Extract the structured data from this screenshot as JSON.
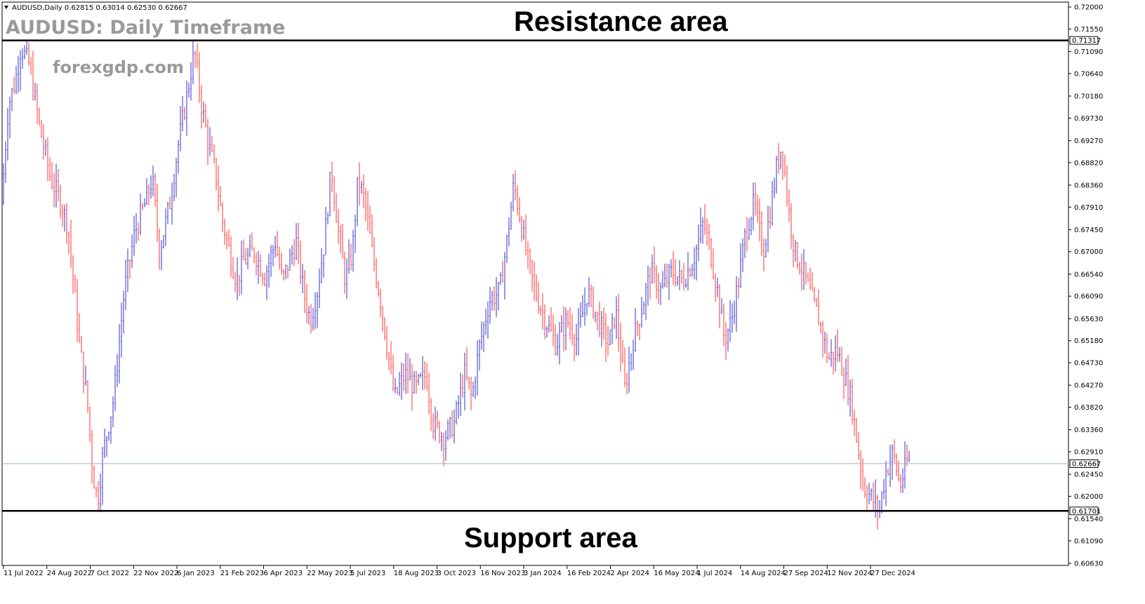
{
  "header": {
    "symbol_line": "AUDUSD,Daily  0.62815 0.63014 0.62530 0.62667",
    "title": "AUDUSD: Daily Timeframe",
    "site": "forexgdp.com"
  },
  "annotations": {
    "resistance": "Resistance area",
    "support": "Support area"
  },
  "colors": {
    "bull": "#3333cc",
    "bear": "#ff3333",
    "current_line": "#9fb0c4",
    "level_line": "#000000"
  },
  "chart_data": {
    "type": "line",
    "style": "OHLC bars",
    "ylim": [
      0.6063,
      0.72
    ],
    "y_ticks": [
      "0.72000",
      "0.71550",
      "0.71090",
      "0.70640",
      "0.70180",
      "0.69730",
      "0.69270",
      "0.68820",
      "0.68360",
      "0.67910",
      "0.67450",
      "0.67000",
      "0.66540",
      "0.66090",
      "0.65630",
      "0.65180",
      "0.64730",
      "0.64270",
      "0.63820",
      "0.63360",
      "0.62910",
      "0.62450",
      "0.62000",
      "0.61540",
      "0.61090",
      "0.60630"
    ],
    "x_ticks": [
      "11 Jul 2022",
      "24 Aug 2022",
      "7 Oct 2022",
      "22 Nov 2022",
      "6 Jan 2023",
      "21 Feb 2023",
      "6 Apr 2023",
      "22 May 2023",
      "5 Jul 2023",
      "18 Aug 2023",
      "3 Oct 2023",
      "16 Nov 2023",
      "3 Jan 2024",
      "16 Feb 2024",
      "2 Apr 2024",
      "16 May 2024",
      "1 Jul 2024",
      "14 Aug 2024",
      "27 Sep 2024",
      "12 Nov 2024",
      "27 Dec 2024"
    ],
    "resistance_level": "0.71317",
    "support_level": "0.61701",
    "current_price": "0.62667",
    "price_path": [
      [
        0,
        0.68
      ],
      [
        10,
        0.7
      ],
      [
        20,
        0.705
      ],
      [
        28,
        0.712
      ],
      [
        40,
        0.708
      ],
      [
        55,
        0.695
      ],
      [
        70,
        0.685
      ],
      [
        85,
        0.68
      ],
      [
        95,
        0.675
      ],
      [
        105,
        0.66
      ],
      [
        112,
        0.65
      ],
      [
        122,
        0.64
      ],
      [
        130,
        0.625
      ],
      [
        137,
        0.619
      ],
      [
        145,
        0.629
      ],
      [
        160,
        0.64
      ],
      [
        175,
        0.662
      ],
      [
        190,
        0.674
      ],
      [
        205,
        0.68
      ],
      [
        215,
        0.685
      ],
      [
        225,
        0.67
      ],
      [
        240,
        0.68
      ],
      [
        252,
        0.692
      ],
      [
        262,
        0.7
      ],
      [
        275,
        0.711
      ],
      [
        285,
        0.7
      ],
      [
        295,
        0.692
      ],
      [
        305,
        0.686
      ],
      [
        315,
        0.676
      ],
      [
        325,
        0.67
      ],
      [
        335,
        0.664
      ],
      [
        345,
        0.668
      ],
      [
        360,
        0.67
      ],
      [
        375,
        0.665
      ],
      [
        390,
        0.672
      ],
      [
        400,
        0.664
      ],
      [
        410,
        0.668
      ],
      [
        420,
        0.672
      ],
      [
        430,
        0.662
      ],
      [
        440,
        0.656
      ],
      [
        450,
        0.662
      ],
      [
        460,
        0.672
      ],
      [
        470,
        0.687
      ],
      [
        480,
        0.674
      ],
      [
        490,
        0.664
      ],
      [
        500,
        0.67
      ],
      [
        508,
        0.685
      ],
      [
        518,
        0.68
      ],
      [
        528,
        0.67
      ],
      [
        540,
        0.66
      ],
      [
        550,
        0.65
      ],
      [
        560,
        0.64
      ],
      [
        575,
        0.645
      ],
      [
        590,
        0.642
      ],
      [
        605,
        0.645
      ],
      [
        615,
        0.635
      ],
      [
        630,
        0.632
      ],
      [
        645,
        0.635
      ],
      [
        660,
        0.645
      ],
      [
        670,
        0.64
      ],
      [
        680,
        0.65
      ],
      [
        695,
        0.66
      ],
      [
        710,
        0.662
      ],
      [
        720,
        0.672
      ],
      [
        730,
        0.684
      ],
      [
        740,
        0.676
      ],
      [
        750,
        0.668
      ],
      [
        760,
        0.662
      ],
      [
        775,
        0.656
      ],
      [
        790,
        0.651
      ],
      [
        805,
        0.656
      ],
      [
        820,
        0.652
      ],
      [
        835,
        0.662
      ],
      [
        850,
        0.656
      ],
      [
        865,
        0.651
      ],
      [
        875,
        0.658
      ],
      [
        888,
        0.642
      ],
      [
        900,
        0.652
      ],
      [
        915,
        0.66
      ],
      [
        925,
        0.666
      ],
      [
        940,
        0.662
      ],
      [
        955,
        0.666
      ],
      [
        970,
        0.664
      ],
      [
        985,
        0.668
      ],
      [
        1000,
        0.676
      ],
      [
        1010,
        0.67
      ],
      [
        1020,
        0.662
      ],
      [
        1030,
        0.652
      ],
      [
        1040,
        0.656
      ],
      [
        1050,
        0.664
      ],
      [
        1060,
        0.674
      ],
      [
        1072,
        0.68
      ],
      [
        1085,
        0.67
      ],
      [
        1095,
        0.678
      ],
      [
        1105,
        0.688
      ],
      [
        1112,
        0.692
      ],
      [
        1120,
        0.68
      ],
      [
        1130,
        0.67
      ],
      [
        1142,
        0.666
      ],
      [
        1155,
        0.66
      ],
      [
        1165,
        0.656
      ],
      [
        1178,
        0.648
      ],
      [
        1190,
        0.65
      ],
      [
        1200,
        0.645
      ],
      [
        1210,
        0.64
      ],
      [
        1220,
        0.63
      ],
      [
        1228,
        0.622
      ],
      [
        1238,
        0.62
      ],
      [
        1250,
        0.617
      ],
      [
        1260,
        0.625
      ],
      [
        1270,
        0.629
      ],
      [
        1280,
        0.622
      ],
      [
        1290,
        0.627
      ]
    ]
  }
}
